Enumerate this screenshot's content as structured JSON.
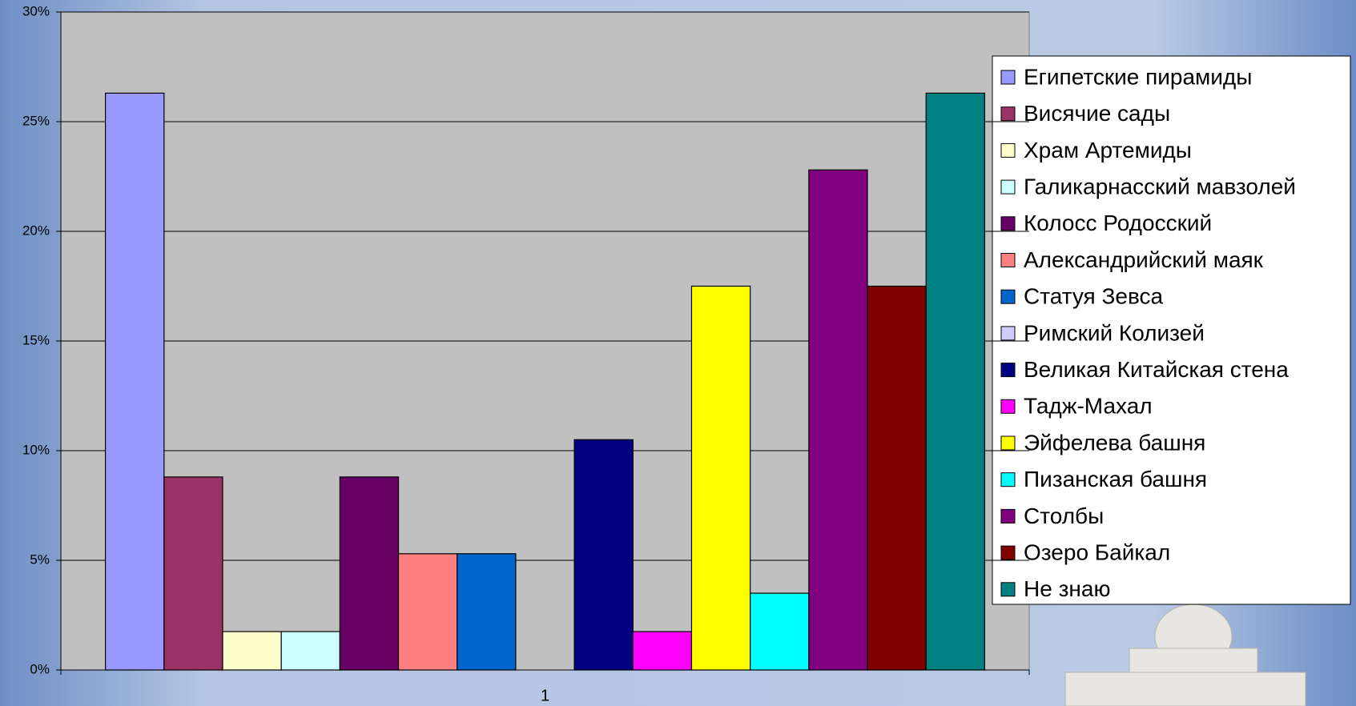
{
  "chart_data": {
    "type": "bar",
    "categories": [
      "1"
    ],
    "series": [
      {
        "name": "Египетские пирамиды",
        "color": "#9999ff",
        "values": [
          26.3
        ]
      },
      {
        "name": "Висячие сады",
        "color": "#993366",
        "values": [
          8.8
        ]
      },
      {
        "name": "Храм Артемиды",
        "color": "#ffffcc",
        "values": [
          1.75
        ]
      },
      {
        "name": "Галикарнасский мавзолей",
        "color": "#ccffff",
        "values": [
          1.75
        ]
      },
      {
        "name": "Колосс Родосский",
        "color": "#660066",
        "values": [
          8.8
        ]
      },
      {
        "name": "Александрийский маяк",
        "color": "#ff8080",
        "values": [
          5.3
        ]
      },
      {
        "name": "Статуя Зевса",
        "color": "#0066cc",
        "values": [
          5.3
        ]
      },
      {
        "name": "Римский Колизей",
        "color": "#ccccff",
        "values": [
          0
        ]
      },
      {
        "name": "Великая Китайская стена",
        "color": "#000080",
        "values": [
          10.5
        ]
      },
      {
        "name": "Тадж-Махал",
        "color": "#ff00ff",
        "values": [
          1.75
        ]
      },
      {
        "name": "Эйфелева башня",
        "color": "#ffff00",
        "values": [
          17.5
        ]
      },
      {
        "name": "Пизанская башня",
        "color": "#00ffff",
        "values": [
          3.5
        ]
      },
      {
        "name": "Столбы",
        "color": "#800080",
        "values": [
          22.8
        ]
      },
      {
        "name": "Озеро Байкал",
        "color": "#800000",
        "values": [
          17.5
        ]
      },
      {
        "name": "Не знаю",
        "color": "#008080",
        "values": [
          26.3
        ]
      }
    ],
    "ylim": [
      0,
      30
    ],
    "yticks": [
      {
        "value": 0,
        "label": "0%"
      },
      {
        "value": 5,
        "label": "5%"
      },
      {
        "value": 10,
        "label": "10%"
      },
      {
        "value": 15,
        "label": "15%"
      },
      {
        "value": 20,
        "label": "20%"
      },
      {
        "value": 25,
        "label": "25%"
      },
      {
        "value": 30,
        "label": "30%"
      }
    ],
    "grid": true,
    "legend": "right"
  }
}
